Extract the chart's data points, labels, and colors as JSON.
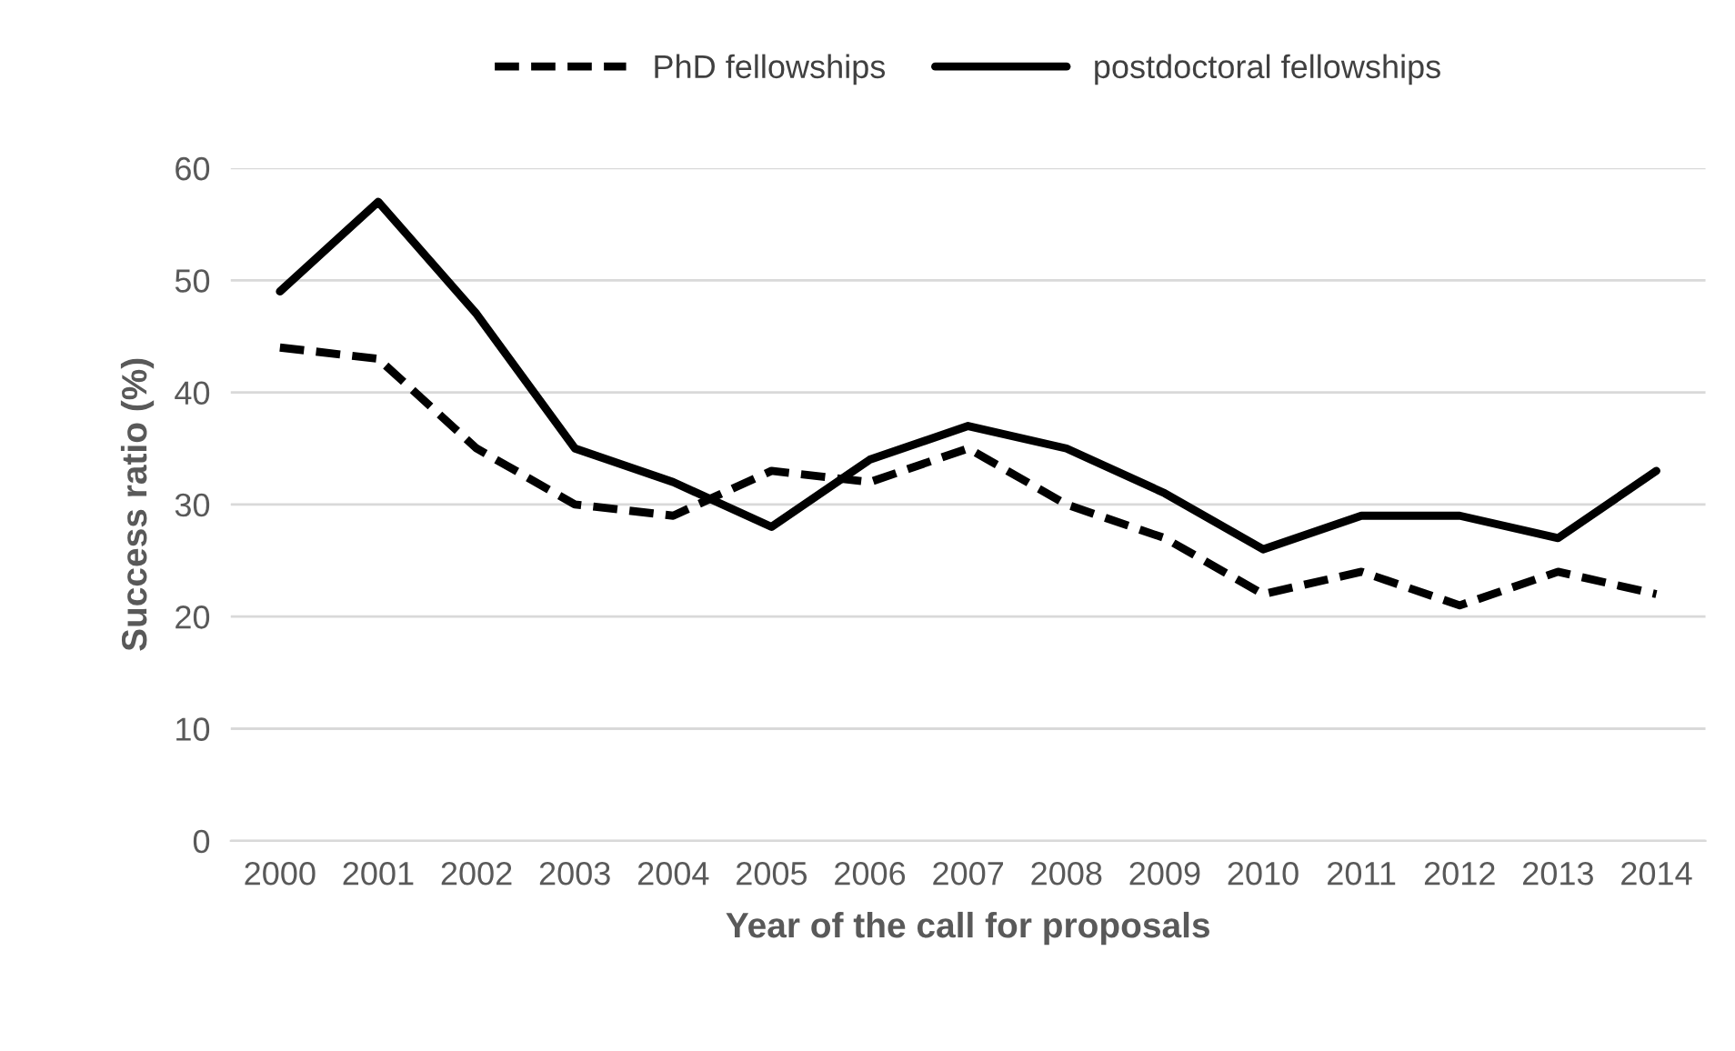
{
  "chart_data": {
    "type": "line",
    "xlabel": "Year of the call for proposals",
    "ylabel": "Success ratio (%)",
    "categories": [
      "2000",
      "2001",
      "2002",
      "2003",
      "2004",
      "2005",
      "2006",
      "2007",
      "2008",
      "2009",
      "2010",
      "2011",
      "2012",
      "2013",
      "2014"
    ],
    "series": [
      {
        "name": "PhD fellowships",
        "color": "#000000",
        "line_style": "dashed",
        "values": [
          44,
          43,
          35,
          30,
          29,
          33,
          32,
          35,
          30,
          27,
          22,
          24,
          21,
          24,
          22
        ]
      },
      {
        "name": "postdoctoral fellowships",
        "color": "#000000",
        "line_style": "solid",
        "values": [
          49,
          57,
          47,
          35,
          32,
          28,
          34,
          37,
          35,
          31,
          26,
          29,
          29,
          27,
          33
        ]
      }
    ],
    "ylim": [
      0,
      60
    ],
    "yticks": [
      0,
      10,
      20,
      30,
      40,
      50,
      60
    ],
    "grid": "y",
    "legend": "top",
    "marker": "none"
  }
}
